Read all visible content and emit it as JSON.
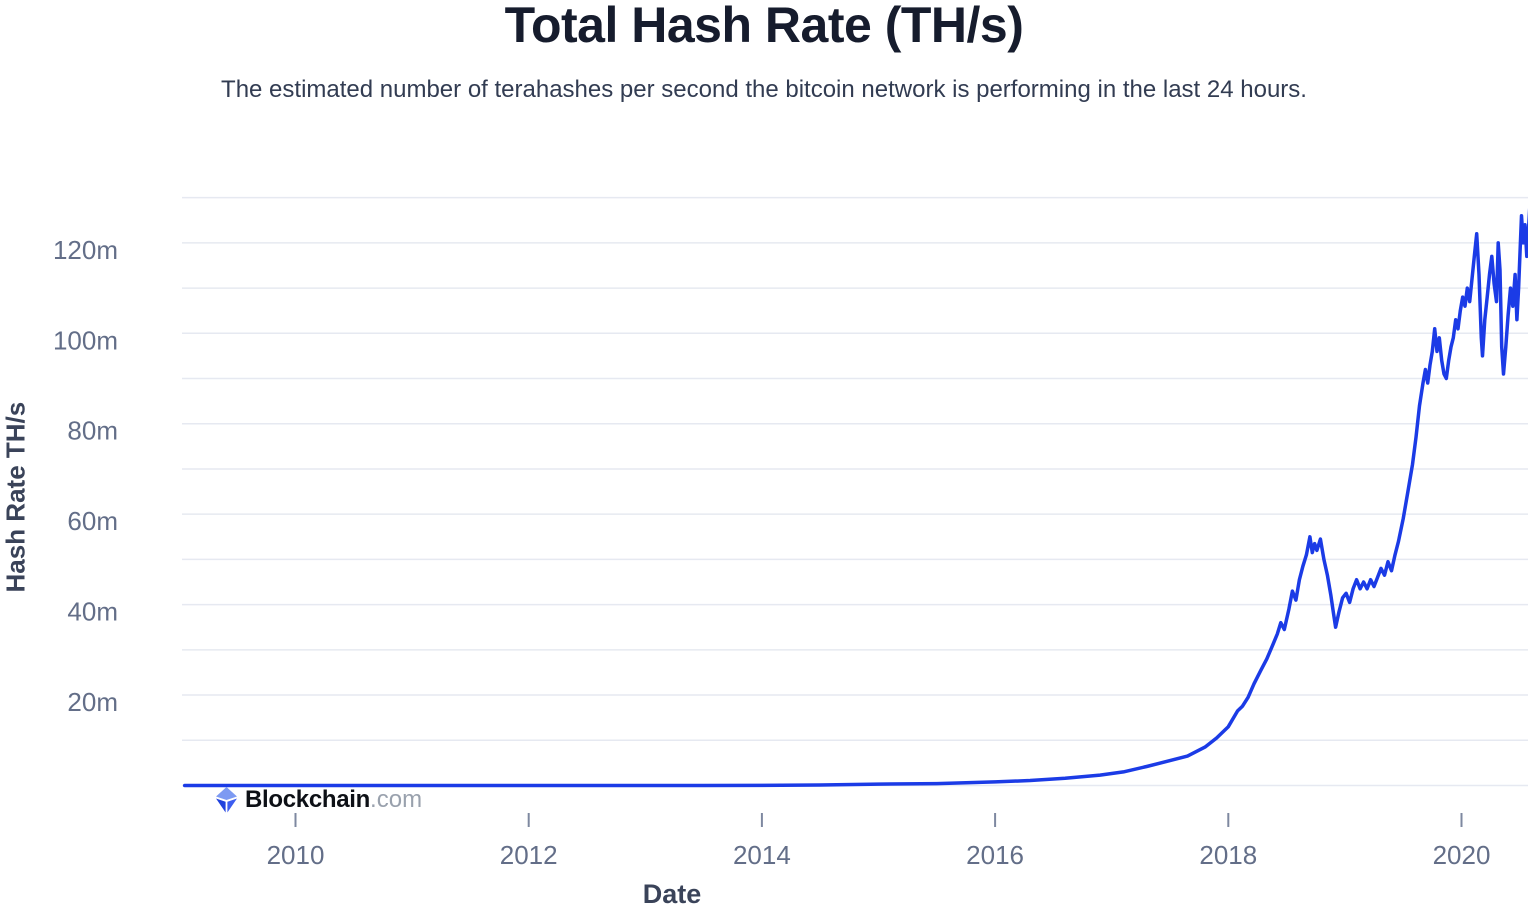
{
  "header": {
    "title": "Total Hash Rate (TH/s)",
    "subtitle": "The estimated number of terahashes per second the bitcoin network is performing in the last 24 hours."
  },
  "logo": {
    "brand": "Blockchain",
    "suffix": ".com"
  },
  "colors": {
    "line": "#1b3be6",
    "grid": "#e6e9f1",
    "tick_mark": "#7e88a0",
    "tick_label": "#636e88",
    "axis_title": "#3a4359",
    "title": "#161c2d",
    "subtitle": "#323c52",
    "logo_brand": "#0d1016",
    "logo_suffix": "#99a1ad",
    "logo_icon_light": "#7d9af2",
    "logo_icon_mid": "#3c5df0",
    "logo_icon_dark": "#1f41dd"
  },
  "chart_data": {
    "type": "line",
    "title": "Total Hash Rate (TH/s)",
    "xlabel": "Date",
    "ylabel": "Hash Rate TH/s",
    "unit": "m = million TH/s",
    "xlim": [
      2009.03,
      2020.59
    ],
    "ylim": [
      0,
      130
    ],
    "grid": "horizontal only, every 10m",
    "legend_position": "none",
    "x_ticks": [
      {
        "label": "2010",
        "year": 2010
      },
      {
        "label": "2012",
        "year": 2012
      },
      {
        "label": "2014",
        "year": 2014
      },
      {
        "label": "2016",
        "year": 2016
      },
      {
        "label": "2018",
        "year": 2018
      },
      {
        "label": "2020",
        "year": 2020
      }
    ],
    "y_ticks": [
      {
        "label": "20m",
        "value": 20
      },
      {
        "label": "40m",
        "value": 40
      },
      {
        "label": "60m",
        "value": 60
      },
      {
        "label": "80m",
        "value": 80
      },
      {
        "label": "100m",
        "value": 100
      },
      {
        "label": "120m",
        "value": 120
      }
    ],
    "y_gridline_step": 10,
    "series": [
      {
        "name": "Total Hash Rate",
        "points": [
          [
            2009.05,
            0
          ],
          [
            2009.5,
            0
          ],
          [
            2010,
            0
          ],
          [
            2010.5,
            0
          ],
          [
            2011,
            0
          ],
          [
            2011.5,
            0
          ],
          [
            2012,
            0
          ],
          [
            2012.5,
            0
          ],
          [
            2013,
            0.0001
          ],
          [
            2013.5,
            0.004
          ],
          [
            2014,
            0.025
          ],
          [
            2014.5,
            0.12
          ],
          [
            2015,
            0.3
          ],
          [
            2015.5,
            0.42
          ],
          [
            2016,
            0.8
          ],
          [
            2016.3,
            1.1
          ],
          [
            2016.6,
            1.6
          ],
          [
            2016.9,
            2.3
          ],
          [
            2017.1,
            3
          ],
          [
            2017.3,
            4.2
          ],
          [
            2017.5,
            5.5
          ],
          [
            2017.65,
            6.5
          ],
          [
            2017.8,
            8.5
          ],
          [
            2017.9,
            10.5
          ],
          [
            2018,
            13
          ],
          [
            2018.08,
            16.5
          ],
          [
            2018.12,
            17.5
          ],
          [
            2018.17,
            19.5
          ],
          [
            2018.22,
            22.5
          ],
          [
            2018.28,
            25.5
          ],
          [
            2018.33,
            28
          ],
          [
            2018.38,
            31
          ],
          [
            2018.42,
            33.5
          ],
          [
            2018.45,
            36
          ],
          [
            2018.48,
            34.5
          ],
          [
            2018.52,
            39
          ],
          [
            2018.55,
            43
          ],
          [
            2018.58,
            41
          ],
          [
            2018.61,
            45.5
          ],
          [
            2018.64,
            48.5
          ],
          [
            2018.67,
            51
          ],
          [
            2018.7,
            55
          ],
          [
            2018.72,
            51.5
          ],
          [
            2018.74,
            53.5
          ],
          [
            2018.76,
            52
          ],
          [
            2018.79,
            54.5
          ],
          [
            2018.82,
            50
          ],
          [
            2018.85,
            46.5
          ],
          [
            2018.88,
            42
          ],
          [
            2018.9,
            38.5
          ],
          [
            2018.92,
            35
          ],
          [
            2018.95,
            38.5
          ],
          [
            2018.98,
            41.5
          ],
          [
            2019.01,
            42.5
          ],
          [
            2019.04,
            40.5
          ],
          [
            2019.07,
            43.5
          ],
          [
            2019.1,
            45.5
          ],
          [
            2019.13,
            43.5
          ],
          [
            2019.16,
            45
          ],
          [
            2019.19,
            43.5
          ],
          [
            2019.22,
            45.5
          ],
          [
            2019.25,
            44
          ],
          [
            2019.28,
            46
          ],
          [
            2019.31,
            48
          ],
          [
            2019.34,
            46.5
          ],
          [
            2019.37,
            49.5
          ],
          [
            2019.4,
            47.5
          ],
          [
            2019.43,
            51
          ],
          [
            2019.46,
            54
          ],
          [
            2019.5,
            59
          ],
          [
            2019.54,
            65
          ],
          [
            2019.58,
            71
          ],
          [
            2019.61,
            77
          ],
          [
            2019.64,
            84
          ],
          [
            2019.67,
            89
          ],
          [
            2019.69,
            92
          ],
          [
            2019.71,
            89
          ],
          [
            2019.73,
            93
          ],
          [
            2019.75,
            96
          ],
          [
            2019.77,
            101
          ],
          [
            2019.79,
            96
          ],
          [
            2019.81,
            99
          ],
          [
            2019.83,
            94
          ],
          [
            2019.85,
            91
          ],
          [
            2019.87,
            90
          ],
          [
            2019.89,
            94
          ],
          [
            2019.91,
            97
          ],
          [
            2019.93,
            99
          ],
          [
            2019.95,
            103
          ],
          [
            2019.97,
            101
          ],
          [
            2019.99,
            105
          ],
          [
            2020.01,
            108
          ],
          [
            2020.03,
            106
          ],
          [
            2020.05,
            110
          ],
          [
            2020.07,
            107
          ],
          [
            2020.09,
            112
          ],
          [
            2020.11,
            117
          ],
          [
            2020.13,
            122
          ],
          [
            2020.15,
            113
          ],
          [
            2020.17,
            99
          ],
          [
            2020.18,
            95
          ],
          [
            2020.2,
            103
          ],
          [
            2020.22,
            108
          ],
          [
            2020.24,
            113
          ],
          [
            2020.26,
            117
          ],
          [
            2020.28,
            111
          ],
          [
            2020.3,
            107
          ],
          [
            2020.315,
            120
          ],
          [
            2020.33,
            114
          ],
          [
            2020.345,
            97
          ],
          [
            2020.36,
            91
          ],
          [
            2020.38,
            97
          ],
          [
            2020.4,
            104
          ],
          [
            2020.42,
            110
          ],
          [
            2020.44,
            106
          ],
          [
            2020.46,
            113
          ],
          [
            2020.475,
            103
          ],
          [
            2020.49,
            110
          ],
          [
            2020.505,
            120
          ],
          [
            2020.515,
            126
          ],
          [
            2020.53,
            120
          ],
          [
            2020.545,
            124
          ],
          [
            2020.56,
            117
          ],
          [
            2020.575,
            123
          ],
          [
            2020.585,
            127.5
          ]
        ]
      }
    ]
  }
}
